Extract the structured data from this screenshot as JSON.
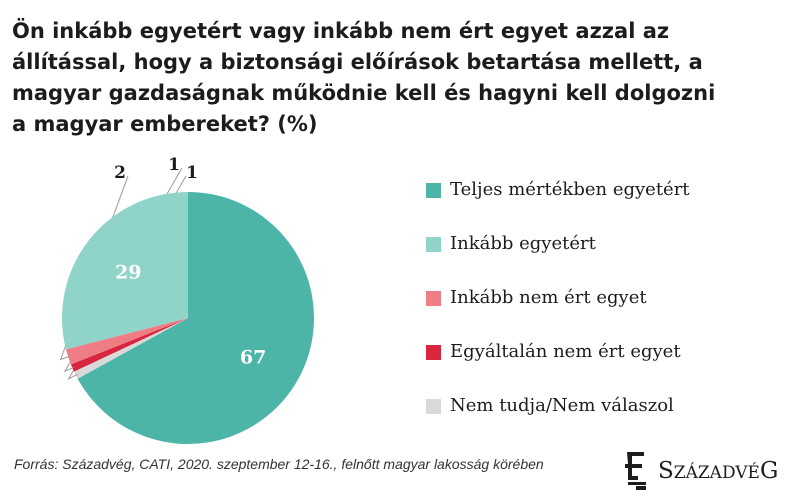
{
  "title": "Ön inkább egyetért vagy inkább nem ért egyet azzal az állítással, hogy a biztonsági előírások betartása mellett, a magyar gazdaságnak működnie kell és hagyni kell dolgozni a magyar embereket? (%)",
  "chart_data": {
    "type": "pie",
    "title": "Ön inkább egyetért vagy inkább nem ért egyet azzal az állítással, hogy a biztonsági előírások betartása mellett, a magyar gazdaságnak működnie kell és hagyni kell dolgozni a magyar embereket? (%)",
    "start_angle_deg": 0,
    "direction": "clockwise",
    "slices": [
      {
        "label": "Teljes mértékben egyetért",
        "value": 67,
        "color": "#4cb5a8",
        "label_text": "67",
        "label_color": "#ffffff"
      },
      {
        "label": "Nem tudja/Nem válaszol",
        "value": 1,
        "color": "#d9d9d9",
        "label_text": "1",
        "label_color": "#1c1c1c"
      },
      {
        "label": "Egyáltalán nem ért egyet",
        "value": 1,
        "color": "#d7263d",
        "label_text": "1",
        "label_color": "#1c1c1c"
      },
      {
        "label": "Inkább nem ért egyet",
        "value": 2,
        "color": "#ef7d86",
        "label_text": "2",
        "label_color": "#1c1c1c"
      },
      {
        "label": "Inkább egyetért",
        "value": 29,
        "color": "#8fd3c9",
        "label_text": "29",
        "label_color": "#ffffff"
      }
    ],
    "legend_position": "right",
    "legend": [
      {
        "label": "Teljes mértékben egyetért",
        "color": "#4cb5a8"
      },
      {
        "label": "Inkább egyetért",
        "color": "#8fd3c9"
      },
      {
        "label": "Inkább nem ért egyet",
        "color": "#ef7d86"
      },
      {
        "label": "Egyáltalán nem ért egyet",
        "color": "#d7263d"
      },
      {
        "label": "Nem tudja/Nem válaszol",
        "color": "#d9d9d9"
      }
    ]
  },
  "source": "Forrás: Századvég, CATI, 2020. szeptember 12-16., felnőtt magyar lakosság körében",
  "brand": {
    "first": "S",
    "small": "ZÁZADVÉ",
    "last": "G"
  }
}
